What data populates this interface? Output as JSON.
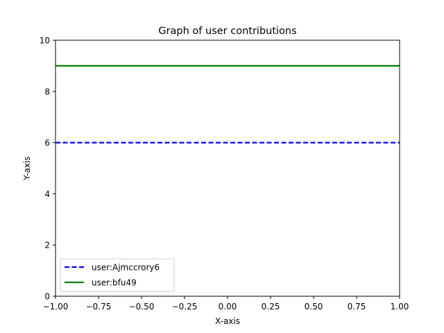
{
  "chart_data": {
    "type": "line",
    "title": "Graph of user contributions",
    "xlabel": "X-axis",
    "ylabel": "Y-axis",
    "xlim": [
      -1.0,
      1.0
    ],
    "ylim": [
      0,
      10
    ],
    "xticks": [
      "−1.00",
      "−0.75",
      "−0.50",
      "−0.25",
      "0.00",
      "0.25",
      "0.50",
      "0.75",
      "1.00"
    ],
    "xtick_values": [
      -1.0,
      -0.75,
      -0.5,
      -0.25,
      0.0,
      0.25,
      0.5,
      0.75,
      1.0
    ],
    "yticks": [
      "0",
      "2",
      "4",
      "6",
      "8",
      "10"
    ],
    "ytick_values": [
      0,
      2,
      4,
      6,
      8,
      10
    ],
    "grid": false,
    "legend_position": "lower-left",
    "series": [
      {
        "name": "user:Ajmccrory6",
        "x": [
          -1.0,
          1.0
        ],
        "y": [
          6,
          6
        ],
        "color": "#0000ff",
        "style": "dashed"
      },
      {
        "name": "user:bfu49",
        "x": [
          -1.0,
          1.0
        ],
        "y": [
          9,
          9
        ],
        "color": "#008000",
        "style": "solid"
      }
    ]
  }
}
